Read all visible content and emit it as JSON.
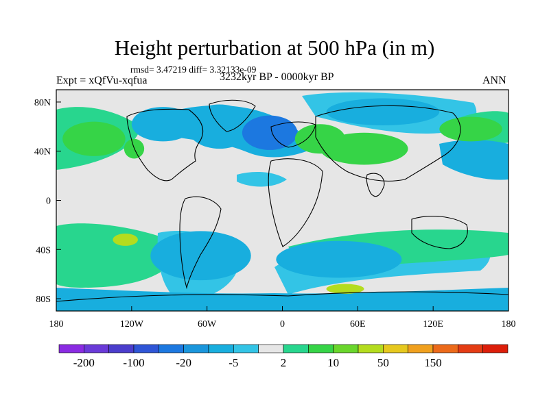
{
  "chart_data": {
    "type": "filled-contour-map",
    "title": "Height perturbation at 500 hPa (in m)",
    "stats": "rmsd= 3.47219 diff= 3.32133e-09",
    "left_label": "Expt = xQfVu-xqfua",
    "subtitle": "3232kyr BP - 0000kyr BP",
    "right_label": "ANN",
    "xlim": [
      -180,
      180
    ],
    "ylim": [
      -90,
      90
    ],
    "x_ticks": [
      {
        "value": -180,
        "label": "180"
      },
      {
        "value": -120,
        "label": "120W"
      },
      {
        "value": -60,
        "label": "60W"
      },
      {
        "value": 0,
        "label": "0"
      },
      {
        "value": 60,
        "label": "60E"
      },
      {
        "value": 120,
        "label": "120E"
      },
      {
        "value": 180,
        "label": "180"
      }
    ],
    "y_ticks": [
      {
        "value": 80,
        "label": "80N"
      },
      {
        "value": 40,
        "label": "40N"
      },
      {
        "value": 0,
        "label": "0"
      },
      {
        "value": -40,
        "label": "40S"
      },
      {
        "value": -80,
        "label": "80S"
      }
    ],
    "colorbar": {
      "colors": [
        "#8a2be2",
        "#6a3ad8",
        "#4b3dcc",
        "#2f55d6",
        "#1c78e0",
        "#1a96dc",
        "#18aede",
        "#33c4e6",
        "#e6e6e6",
        "#28d68e",
        "#36d447",
        "#6ad62c",
        "#b4dc1e",
        "#e6c81e",
        "#f0a01e",
        "#ec6a1a",
        "#e43c14",
        "#dc1e0a"
      ],
      "labels": [
        {
          "boundary": 1,
          "text": "-200"
        },
        {
          "boundary": 3,
          "text": "-100"
        },
        {
          "boundary": 5,
          "text": "-20"
        },
        {
          "boundary": 7,
          "text": "-5"
        },
        {
          "boundary": 9,
          "text": "2"
        },
        {
          "boundary": 11,
          "text": "10"
        },
        {
          "boundary": 13,
          "text": "50"
        },
        {
          "boundary": 15,
          "text": "150"
        }
      ]
    },
    "anomaly_regions": [
      {
        "lon": -150,
        "lat": 50,
        "rx": 25,
        "ry": 14,
        "level": 10
      },
      {
        "lon": -118,
        "lat": 42,
        "rx": 8,
        "ry": 8,
        "level": 10
      },
      {
        "lon": -95,
        "lat": 62,
        "rx": 25,
        "ry": 14,
        "level": -5
      },
      {
        "lon": -50,
        "lat": 60,
        "rx": 26,
        "ry": 18,
        "level": -5
      },
      {
        "lon": -10,
        "lat": 55,
        "rx": 22,
        "ry": 14,
        "level": -20
      },
      {
        "lon": 80,
        "lat": 72,
        "rx": 45,
        "ry": 11,
        "level": -5
      },
      {
        "lon": 65,
        "lat": 42,
        "rx": 35,
        "ry": 13,
        "level": 10
      },
      {
        "lon": 30,
        "lat": 50,
        "rx": 20,
        "ry": 12,
        "level": 10
      },
      {
        "lon": 150,
        "lat": 58,
        "rx": 25,
        "ry": 10,
        "level": 10
      },
      {
        "lon": 155,
        "lat": 38,
        "rx": 25,
        "ry": 10,
        "level": -5
      },
      {
        "lon": -125,
        "lat": -32,
        "rx": 10,
        "ry": 5,
        "level": 50
      },
      {
        "lon": -65,
        "lat": -45,
        "rx": 40,
        "ry": 20,
        "level": -5
      },
      {
        "lon": 45,
        "lat": -48,
        "rx": 50,
        "ry": 15,
        "level": -5
      },
      {
        "lon": 50,
        "lat": -72,
        "rx": 15,
        "ry": 4,
        "level": 50
      }
    ]
  }
}
